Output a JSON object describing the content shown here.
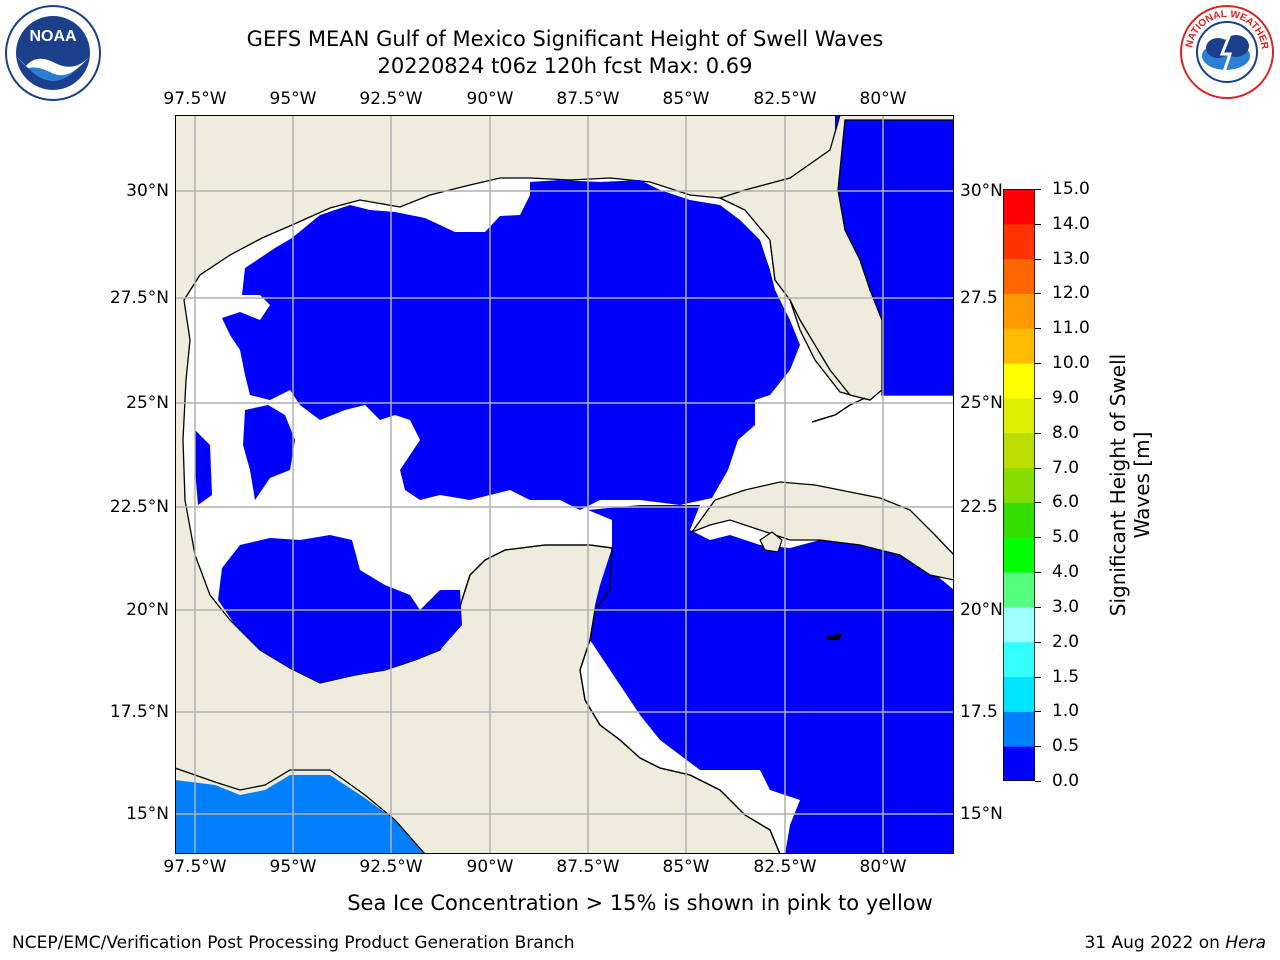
{
  "header": {
    "title_line1": "GEFS MEAN Gulf of Mexico Significant Height of Swell Waves",
    "title_line2": "20220824 t06z 120h fcst   Max: 0.69"
  },
  "map": {
    "lon_ticks": [
      "97.5°W",
      "95°W",
      "92.5°W",
      "90°W",
      "87.5°W",
      "85°W",
      "82.5°W",
      "80°W"
    ],
    "lat_ticks": [
      "30°N",
      "27.5°N",
      "25°N",
      "22.5°N",
      "20°N",
      "17.5°N",
      "15°N"
    ],
    "lat_ticks_right": [
      "30°N",
      "27.5",
      "25°N",
      "22.5",
      "20°N",
      "17.5",
      "15°N"
    ],
    "extent": {
      "lon_min": -98.0,
      "lon_max": -79.0,
      "lat_min": 14.0,
      "lat_max": 31.8
    },
    "colors": {
      "land": "#eeecdc",
      "ocean_low": "#0000ff",
      "ocean_mid": "#0080ff",
      "grid": "#b0b0b0"
    }
  },
  "colorbar": {
    "title": "Significant Height of Swell Waves [m]",
    "tick_labels": [
      "0.0",
      "0.5",
      "1.0",
      "1.5",
      "2.0",
      "3.0",
      "4.0",
      "5.0",
      "6.0",
      "7.0",
      "8.0",
      "9.0",
      "10.0",
      "11.0",
      "12.0",
      "13.0",
      "14.0",
      "15.0"
    ],
    "colors": [
      "#0000ff",
      "#0080ff",
      "#00e5ff",
      "#33ffff",
      "#66ffff",
      "#a0ffff",
      "#55ff80",
      "#00ff00",
      "#33dd00",
      "#88dd00",
      "#bbdd00",
      "#ddee00",
      "#ffff00",
      "#ffdd00",
      "#ffbb00",
      "#ff9900",
      "#ff6600",
      "#ff3300",
      "#ff0000"
    ]
  },
  "note": "Sea Ice Concentration > 15% is shown in pink to yellow",
  "footer": {
    "credit": "NCEP/EMC/Verification Post Processing Product Generation Branch",
    "date": "31 Aug 2022 on",
    "machine": "Hera"
  },
  "logos": {
    "noaa_text": "NOAA",
    "nws_ring_text": "NATIONAL WEATHER SERVICE"
  }
}
